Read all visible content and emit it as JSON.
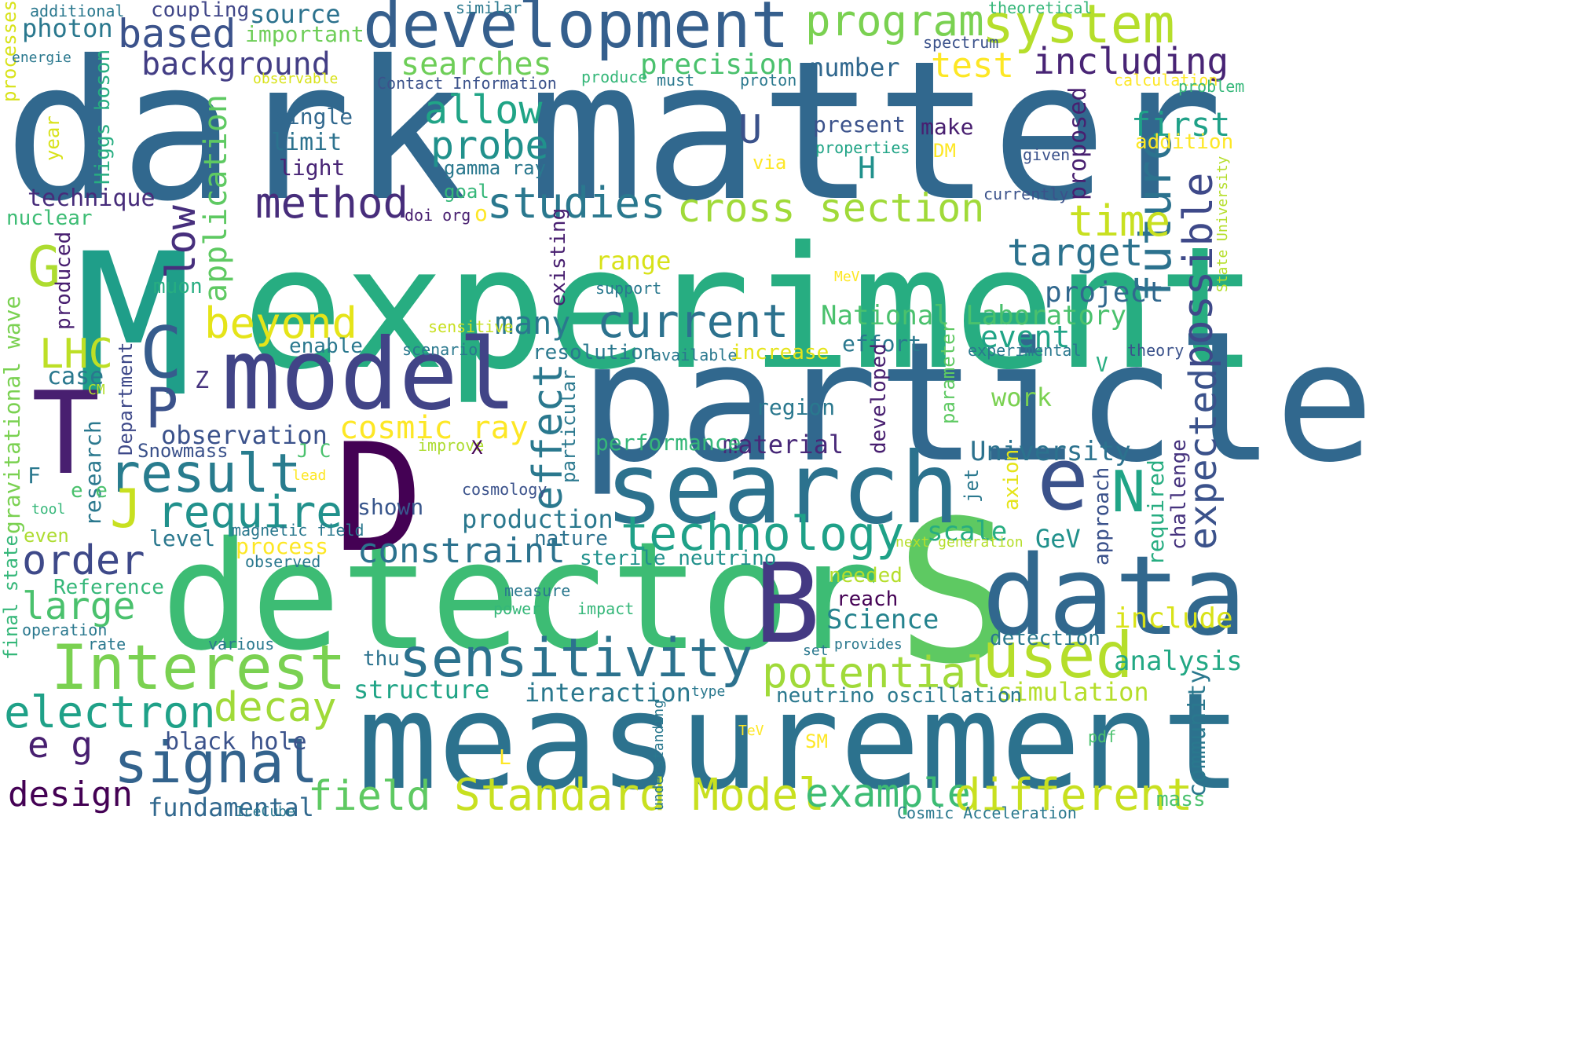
{
  "words": [
    {
      "text": "dark",
      "color": "#31688e"
    },
    {
      "text": "matter",
      "color": "#31688e"
    },
    {
      "text": "M",
      "color": "#1f9e89"
    },
    {
      "text": "experiment",
      "color": "#27ad81"
    },
    {
      "text": "particle",
      "color": "#31688e"
    },
    {
      "text": "detector",
      "color": "#3dbc74"
    },
    {
      "text": "S",
      "color": "#5ec962"
    },
    {
      "text": "B",
      "color": "#443983"
    },
    {
      "text": "data",
      "color": "#31688e"
    },
    {
      "text": "measurement",
      "color": "#2c728e"
    },
    {
      "text": "D",
      "color": "#440154"
    },
    {
      "text": "model",
      "color": "#414487"
    },
    {
      "text": "search",
      "color": "#2c728e"
    },
    {
      "text": "T",
      "color": "#481f70"
    },
    {
      "text": "development",
      "color": "#355f8d"
    },
    {
      "text": "Interest",
      "color": "#7ad151"
    },
    {
      "text": "sensitivity",
      "color": "#2c728e"
    },
    {
      "text": "system",
      "color": "#b5de2b"
    },
    {
      "text": "program",
      "color": "#7ad151"
    },
    {
      "text": "including",
      "color": "#482475"
    },
    {
      "text": "based",
      "color": "#3b528b"
    },
    {
      "text": "background",
      "color": "#433e85"
    },
    {
      "text": "searches",
      "color": "#6ece58"
    },
    {
      "text": "allow",
      "color": "#20a486"
    },
    {
      "text": "probe",
      "color": "#21918c"
    },
    {
      "text": "method",
      "color": "#472d7b"
    },
    {
      "text": "studies",
      "color": "#2a788e"
    },
    {
      "text": "cross section",
      "color": "#a0da39"
    },
    {
      "text": "result",
      "color": "#287c8e"
    },
    {
      "text": "require",
      "color": "#21918c"
    },
    {
      "text": "current",
      "color": "#2c728e"
    },
    {
      "text": "technology",
      "color": "#1fa188"
    },
    {
      "text": "e",
      "color": "#3b528b"
    },
    {
      "text": "signal",
      "color": "#33638d"
    },
    {
      "text": "used",
      "color": "#b5de2b"
    },
    {
      "text": "potential",
      "color": "#a0da39"
    },
    {
      "text": "electron",
      "color": "#1fa188"
    },
    {
      "text": "Standard Model",
      "color": "#c8e020"
    },
    {
      "text": "future",
      "color": "#2c728e"
    },
    {
      "text": "possible",
      "color": "#3e4989"
    },
    {
      "text": "order",
      "color": "#3e4989"
    },
    {
      "text": "large",
      "color": "#4ac16d"
    },
    {
      "text": "beyond",
      "color": "#e5e419"
    },
    {
      "text": "target",
      "color": "#2c728e"
    },
    {
      "text": "time",
      "color": "#c8e020"
    },
    {
      "text": "effect",
      "color": "#2a788e"
    },
    {
      "text": "expected",
      "color": "#3b528b"
    },
    {
      "text": "cosmic ray",
      "color": "#fde725"
    },
    {
      "text": "decay",
      "color": "#a0da39"
    },
    {
      "text": "example",
      "color": "#3dbc74"
    },
    {
      "text": "different",
      "color": "#c8e020"
    },
    {
      "text": "field",
      "color": "#5ec962"
    },
    {
      "text": "design",
      "color": "#440154"
    },
    {
      "text": "LHC",
      "color": "#bddf26"
    },
    {
      "text": "C",
      "color": "#365c8d"
    },
    {
      "text": "P",
      "color": "#3b528b"
    },
    {
      "text": "N",
      "color": "#20a486"
    },
    {
      "text": "G",
      "color": "#addc30"
    },
    {
      "text": "J",
      "color": "#c8e020"
    },
    {
      "text": "low",
      "color": "#472f7d"
    },
    {
      "text": "application",
      "color": "#5ec962"
    },
    {
      "text": "test",
      "color": "#fde725"
    },
    {
      "text": "precision",
      "color": "#4ac16d"
    },
    {
      "text": "number",
      "color": "#31688e"
    },
    {
      "text": "many",
      "color": "#2a788e"
    },
    {
      "text": "constraint",
      "color": "#2c728e"
    },
    {
      "text": "production",
      "color": "#2a788e"
    },
    {
      "text": "observation",
      "color": "#3b528b"
    },
    {
      "text": "interaction",
      "color": "#2a788e"
    },
    {
      "text": "structure",
      "color": "#20a486"
    },
    {
      "text": "e g",
      "color": "#481f70"
    },
    {
      "text": "fundamental",
      "color": "#31688e"
    },
    {
      "text": "black hole",
      "color": "#3b528b"
    },
    {
      "text": "National Laboratory",
      "color": "#4ac16d"
    },
    {
      "text": "University",
      "color": "#2c728e"
    },
    {
      "text": "project",
      "color": "#31688e"
    },
    {
      "text": "event",
      "color": "#20a486"
    },
    {
      "text": "first",
      "color": "#1fa188"
    },
    {
      "text": "scale",
      "color": "#27ad81"
    },
    {
      "text": "GeV",
      "color": "#21918c"
    },
    {
      "text": "Science",
      "color": "#25838e"
    },
    {
      "text": "include",
      "color": "#d8e219"
    },
    {
      "text": "analysis",
      "color": "#22a884"
    },
    {
      "text": "simulation",
      "color": "#b5de2b"
    },
    {
      "text": "community",
      "color": "#2a788e"
    },
    {
      "text": "neutrino oscillation",
      "color": "#2a788e"
    },
    {
      "text": "photon",
      "color": "#2a788e"
    },
    {
      "text": "source",
      "color": "#2c728e"
    },
    {
      "text": "coupling",
      "color": "#404688"
    },
    {
      "text": "important",
      "color": "#6ece58"
    },
    {
      "text": "technique",
      "color": "#472c7a"
    },
    {
      "text": "nuclear",
      "color": "#3dbc74"
    },
    {
      "text": "single",
      "color": "#31688e"
    },
    {
      "text": "limit",
      "color": "#2c728e"
    },
    {
      "text": "light",
      "color": "#482475"
    },
    {
      "text": "gamma ray",
      "color": "#2a788e"
    },
    {
      "text": "goal",
      "color": "#35b779"
    },
    {
      "text": "U",
      "color": "#3b528b"
    },
    {
      "text": "H",
      "color": "#21918c"
    },
    {
      "text": "range",
      "color": "#d8e219"
    },
    {
      "text": "resolution",
      "color": "#2a788e"
    },
    {
      "text": "increase",
      "color": "#e5e419"
    },
    {
      "text": "effort",
      "color": "#2a788e"
    },
    {
      "text": "material",
      "color": "#482878"
    },
    {
      "text": "region",
      "color": "#2a788e"
    },
    {
      "text": "work",
      "color": "#7ad151"
    },
    {
      "text": "performance",
      "color": "#35b779"
    },
    {
      "text": "shown",
      "color": "#39568c"
    },
    {
      "text": "process",
      "color": "#fde725"
    },
    {
      "text": "level",
      "color": "#2a788e"
    },
    {
      "text": "case",
      "color": "#2a788e"
    },
    {
      "text": "Reference",
      "color": "#35b779"
    },
    {
      "text": "reach",
      "color": "#440154"
    },
    {
      "text": "needed",
      "color": "#b5de2b"
    },
    {
      "text": "detection",
      "color": "#2a788e"
    },
    {
      "text": "thu",
      "color": "#2c728e"
    },
    {
      "text": "sterile neutrino",
      "color": "#21918c"
    },
    {
      "text": "nature",
      "color": "#2c728e"
    },
    {
      "text": "present",
      "color": "#3b528b"
    },
    {
      "text": "make",
      "color": "#481f70"
    },
    {
      "text": "addition",
      "color": "#fde725"
    },
    {
      "text": "proposed",
      "color": "#481f70"
    },
    {
      "text": "approach",
      "color": "#3b528b"
    },
    {
      "text": "required",
      "color": "#27ad81"
    },
    {
      "text": "challenge",
      "color": "#46337e"
    },
    {
      "text": "developed",
      "color": "#481f70"
    },
    {
      "text": "particular",
      "color": "#2a788e"
    },
    {
      "text": "existing",
      "color": "#481f70"
    },
    {
      "text": "axion",
      "color": "#e5e419"
    },
    {
      "text": "jet",
      "color": "#2a788e"
    },
    {
      "text": "parameter",
      "color": "#5ec962"
    },
    {
      "text": "gravitational wave",
      "color": "#7ad151"
    },
    {
      "text": "research",
      "color": "#2a788e"
    },
    {
      "text": "Higgs boson",
      "color": "#27ad81"
    },
    {
      "text": "produced",
      "color": "#481f70"
    },
    {
      "text": "Department",
      "color": "#3e4989"
    },
    {
      "text": "final state",
      "color": "#35b779"
    },
    {
      "text": "understanding",
      "color": "#2a788e"
    },
    {
      "text": "processes",
      "color": "#d8e219"
    },
    {
      "text": "year",
      "color": "#d8e219"
    },
    {
      "text": "muon",
      "color": "#27ad81"
    },
    {
      "text": "Snowmass",
      "color": "#3b528b"
    },
    {
      "text": "enable",
      "color": "#2a788e"
    },
    {
      "text": "even",
      "color": "#addc30"
    },
    {
      "text": "operation",
      "color": "#2a788e"
    },
    {
      "text": "rate",
      "color": "#2a788e"
    },
    {
      "text": "various",
      "color": "#2a788e"
    },
    {
      "text": "tool",
      "color": "#35b779"
    },
    {
      "text": "magnetic field",
      "color": "#2a788e"
    },
    {
      "text": "observed",
      "color": "#2a788e"
    },
    {
      "text": "cosmology",
      "color": "#3b528b"
    },
    {
      "text": "lead",
      "color": "#fde725"
    },
    {
      "text": "improve",
      "color": "#addc30"
    },
    {
      "text": "measure",
      "color": "#2a788e"
    },
    {
      "text": "power",
      "color": "#35b779"
    },
    {
      "text": "impact",
      "color": "#35b779"
    },
    {
      "text": "available",
      "color": "#2a788e"
    },
    {
      "text": "scenario",
      "color": "#2a788e"
    },
    {
      "text": "sensitive",
      "color": "#c8e020"
    },
    {
      "text": "support",
      "color": "#2a788e"
    },
    {
      "text": "MeV",
      "color": "#fde725"
    },
    {
      "text": "experimental",
      "color": "#2a788e"
    },
    {
      "text": "theory",
      "color": "#3b528b"
    },
    {
      "text": "next generation",
      "color": "#b5de2b"
    },
    {
      "text": "State University",
      "color": "#b5de2b"
    },
    {
      "text": "currently",
      "color": "#3b528b"
    },
    {
      "text": "given",
      "color": "#3b528b"
    },
    {
      "text": "properties",
      "color": "#20a486"
    },
    {
      "text": "via",
      "color": "#fde725"
    },
    {
      "text": "DM",
      "color": "#fde725"
    },
    {
      "text": "must",
      "color": "#2a788e"
    },
    {
      "text": "proton",
      "color": "#2a788e"
    },
    {
      "text": "produce",
      "color": "#35b779"
    },
    {
      "text": "calculation",
      "color": "#fde725"
    },
    {
      "text": "problem",
      "color": "#35b779"
    },
    {
      "text": "spectrum",
      "color": "#3b528b"
    },
    {
      "text": "theoretical",
      "color": "#35b779"
    },
    {
      "text": "similar",
      "color": "#2a788e"
    },
    {
      "text": "additional",
      "color": "#2a788e"
    },
    {
      "text": "energie",
      "color": "#2a788e"
    },
    {
      "text": "observable",
      "color": "#d8e219"
    },
    {
      "text": "Contact Information",
      "color": "#3b528b"
    },
    {
      "text": "doi org",
      "color": "#481f70"
    },
    {
      "text": "o",
      "color": "#fde725"
    },
    {
      "text": "Z",
      "color": "#46337e"
    },
    {
      "text": "J C",
      "color": "#4ac16d"
    },
    {
      "text": "X",
      "color": "#440154"
    },
    {
      "text": "F",
      "color": "#2a788e"
    },
    {
      "text": "e e",
      "color": "#4ac16d"
    },
    {
      "text": "CM",
      "color": "#b5de2b"
    },
    {
      "text": "V",
      "color": "#27ad81"
    },
    {
      "text": "set",
      "color": "#2a788e"
    },
    {
      "text": "provides",
      "color": "#2a788e"
    },
    {
      "text": "type",
      "color": "#2a788e"
    },
    {
      "text": "TeV",
      "color": "#fde725"
    },
    {
      "text": "SM",
      "color": "#fde725"
    },
    {
      "text": "L",
      "color": "#fde725"
    },
    {
      "text": "pdf",
      "color": "#4ac16d"
    },
    {
      "text": "IceCube",
      "color": "#2a788e"
    },
    {
      "text": "Cosmic Acceleration",
      "color": "#2a788e"
    },
    {
      "text": "mass",
      "color": "#4ac16d"
    }
  ]
}
